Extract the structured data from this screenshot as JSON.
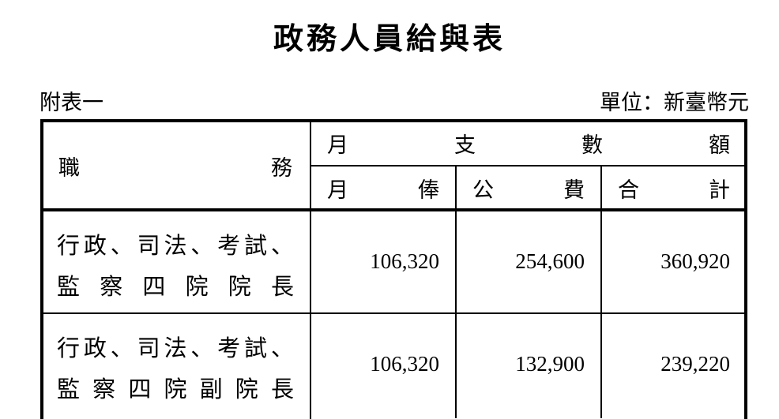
{
  "title": "政務人員給與表",
  "note": "附表一",
  "unit": "單位：新臺幣元",
  "header": {
    "position": "職務",
    "monthly_total": "月支數額",
    "salary": "月俸",
    "public_fee": "公費",
    "total": "合計"
  },
  "rows": [
    {
      "line1": "行政、司法、考試、",
      "line2": "監察四院院長",
      "salary": "106,320",
      "public_fee": "254,600",
      "total": "360,920"
    },
    {
      "line1": "行政、司法、考試、",
      "line2": "監察四院副院長",
      "salary": "106,320",
      "public_fee": "132,900",
      "total": "239,220"
    }
  ]
}
